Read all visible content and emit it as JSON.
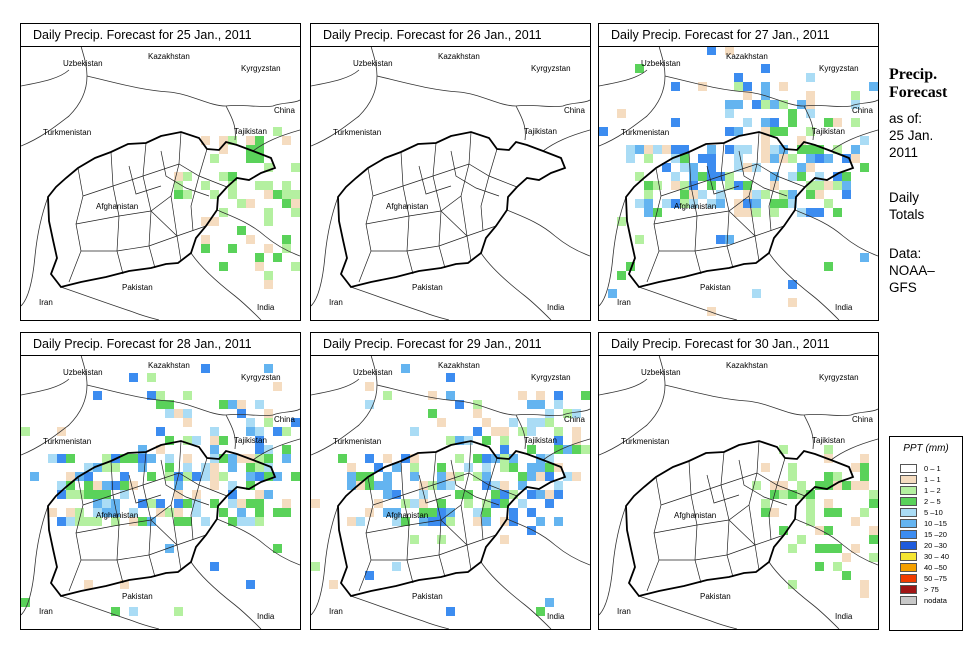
{
  "panels": [
    {
      "title": "Daily Precip. Forecast for  25 Jan., 2011",
      "intensity": "light"
    },
    {
      "title": "Daily Precip. Forecast for  26 Jan., 2011",
      "intensity": "none"
    },
    {
      "title": "Daily Precip. Forecast for  27 Jan., 2011",
      "intensity": "heavy"
    },
    {
      "title": "Daily Precip. Forecast for  28 Jan., 2011",
      "intensity": "heavy"
    },
    {
      "title": "Daily Precip. Forecast for  29 Jan., 2011",
      "intensity": "heavy"
    },
    {
      "title": "Daily Precip. Forecast for  30 Jan., 2011",
      "intensity": "light"
    }
  ],
  "countries": {
    "kazakhstan": "Kazakhstan",
    "uzbekistan": "Uzbekistan",
    "kyrgyzstan": "Kyrgyzstan",
    "china": "China",
    "tajikistan": "Tajikistan",
    "turkmenistan": "Turkmenistan",
    "afghanistan": "Afghanistan",
    "pakistan": "Pakistan",
    "iran": "Iran",
    "india": "India"
  },
  "sidebar": {
    "title_line1": "Precip.",
    "title_line2": "Forecast",
    "asof": "as of:",
    "date_line1": "25 Jan.",
    "date_line2": "2011",
    "totals_line1": "Daily",
    "totals_line2": "Totals",
    "data_line1": "Data:",
    "data_line2": "NOAA–",
    "data_line3": "GFS"
  },
  "legend": {
    "title": "PPT (mm)",
    "items": [
      {
        "label": "0 – 1",
        "color": "#ffffff"
      },
      {
        "label": "1 – 1",
        "color": "#f5dcc0"
      },
      {
        "label": "1 – 2",
        "color": "#b4f0a0"
      },
      {
        "label": "2 – 5",
        "color": "#5ad25a"
      },
      {
        "label": "5 –10",
        "color": "#aadcf5"
      },
      {
        "label": "10 –15",
        "color": "#64b4f0"
      },
      {
        "label": "15 –20",
        "color": "#3c8cf0"
      },
      {
        "label": "20 –30",
        "color": "#1e5adc"
      },
      {
        "label": "30 – 40",
        "color": "#f5e632"
      },
      {
        "label": "40 –50",
        "color": "#f5a000"
      },
      {
        "label": "50 –75",
        "color": "#f03c00"
      },
      {
        "label": "> 75",
        "color": "#a01414"
      },
      {
        "label": "nodata",
        "color": "#c8c8c8"
      }
    ]
  }
}
